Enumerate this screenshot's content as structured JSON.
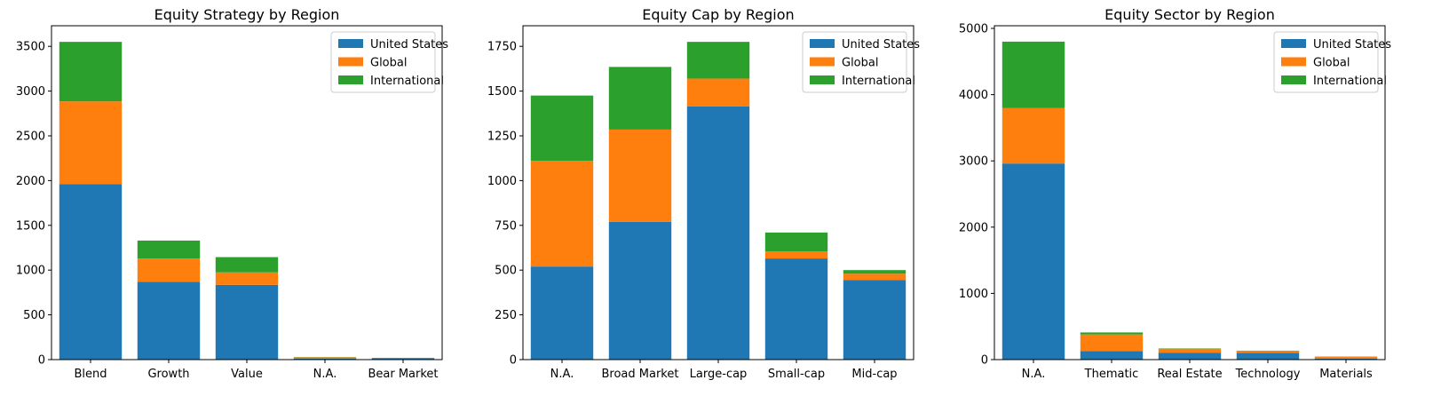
{
  "colors": {
    "United States": "#1f77b4",
    "Global": "#ff7f0e",
    "International": "#2ca02c"
  },
  "chart_data": [
    {
      "type": "bar",
      "stacked": true,
      "title": "Equity Strategy by Region",
      "categories": [
        "Blend",
        "Growth",
        "Value",
        "N.A.",
        "Bear Market"
      ],
      "series": [
        {
          "name": "United States",
          "values": [
            1960,
            870,
            835,
            10,
            15
          ]
        },
        {
          "name": "Global",
          "values": [
            925,
            260,
            140,
            15,
            3
          ]
        },
        {
          "name": "International",
          "values": [
            665,
            200,
            170,
            3,
            2
          ]
        }
      ],
      "ylim": [
        0,
        3730
      ],
      "yticks": [
        0,
        500,
        1000,
        1500,
        2000,
        2500,
        3000,
        3500
      ],
      "ytick_labels": [
        "0",
        "500",
        "1000",
        "1500",
        "2000",
        "2500",
        "3000",
        "3500"
      ],
      "legend": "top-right",
      "grid": false
    },
    {
      "type": "bar",
      "stacked": true,
      "title": "Equity Cap by Region",
      "categories": [
        "N.A.",
        "Broad Market",
        "Large-cap",
        "Small-cap",
        "Mid-cap"
      ],
      "series": [
        {
          "name": "United States",
          "values": [
            520,
            770,
            1415,
            565,
            445
          ]
        },
        {
          "name": "Global",
          "values": [
            590,
            515,
            155,
            40,
            35
          ]
        },
        {
          "name": "International",
          "values": [
            365,
            350,
            205,
            105,
            20
          ]
        }
      ],
      "ylim": [
        0,
        1865
      ],
      "yticks": [
        0,
        250,
        500,
        750,
        1000,
        1250,
        1500,
        1750
      ],
      "ytick_labels": [
        "0",
        "250",
        "500",
        "750",
        "1000",
        "1250",
        "1500",
        "1750"
      ],
      "legend": "top-right",
      "grid": false
    },
    {
      "type": "bar",
      "stacked": true,
      "title": "Equity Sector by Region",
      "categories": [
        "N.A.",
        "Thematic",
        "Real Estate",
        "Technology",
        "Materials"
      ],
      "series": [
        {
          "name": "United States",
          "values": [
            2960,
            130,
            105,
            100,
            15
          ]
        },
        {
          "name": "Global",
          "values": [
            840,
            250,
            60,
            30,
            25
          ]
        },
        {
          "name": "International",
          "values": [
            1000,
            30,
            5,
            5,
            5
          ]
        }
      ],
      "ylim": [
        0,
        5040
      ],
      "yticks": [
        0,
        1000,
        2000,
        3000,
        4000,
        5000
      ],
      "ytick_labels": [
        "0",
        "1000",
        "2000",
        "3000",
        "4000",
        "5000"
      ],
      "legend": "top-right",
      "grid": false
    }
  ]
}
